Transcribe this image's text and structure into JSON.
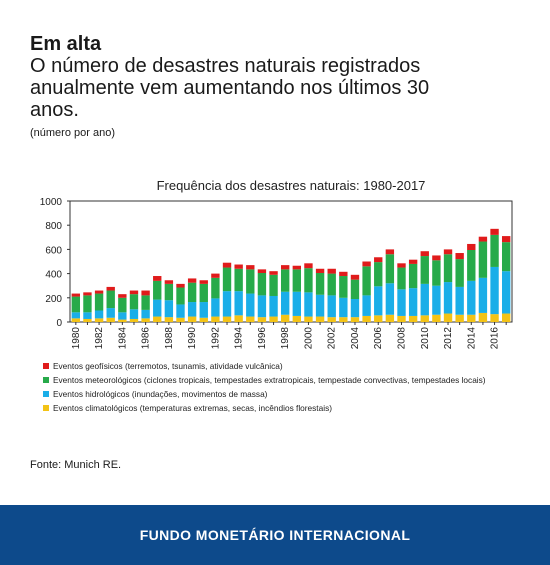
{
  "header": {
    "title": "Em alta",
    "subtitle": "O número de desastres naturais registrados anualmente vem aumentando nos últimos 30 anos.",
    "unit": "(número por ano)"
  },
  "source": "Fonte: Munich RE.",
  "footer": {
    "org": "FUNDO MONETÁRIO INTERNACIONAL"
  },
  "chart_data": {
    "type": "bar",
    "stacked": true,
    "title": "Frequência dos desastres naturais: 1980-2017",
    "xlabel": "",
    "ylabel": "",
    "ylim": [
      0,
      1000
    ],
    "yticks": [
      0,
      200,
      400,
      600,
      800,
      1000
    ],
    "grid": false,
    "legend_position": "bottom",
    "categories": [
      "1980",
      "1981",
      "1982",
      "1983",
      "1984",
      "1985",
      "1986",
      "1987",
      "1988",
      "1989",
      "1990",
      "1991",
      "1992",
      "1993",
      "1994",
      "1995",
      "1996",
      "1997",
      "1998",
      "1999",
      "2000",
      "2001",
      "2002",
      "2003",
      "2004",
      "2005",
      "2006",
      "2007",
      "2008",
      "2009",
      "2010",
      "2011",
      "2012",
      "2013",
      "2014",
      "2015",
      "2016",
      "2017"
    ],
    "xtick_labels": [
      "1980",
      "1982",
      "1984",
      "1986",
      "1988",
      "1990",
      "1992",
      "1994",
      "1996",
      "1998",
      "2000",
      "2002",
      "2004",
      "2006",
      "2008",
      "2010",
      "2012",
      "2014",
      "2016"
    ],
    "series": [
      {
        "name": "Eventos climatológicos (temperaturas extremas, secas, incêndios florestais)",
        "color": "#f3c316",
        "values": [
          30,
          25,
          30,
          35,
          20,
          25,
          30,
          45,
          40,
          35,
          45,
          35,
          45,
          45,
          55,
          45,
          40,
          45,
          60,
          50,
          45,
          45,
          40,
          40,
          40,
          50,
          55,
          60,
          50,
          50,
          55,
          60,
          70,
          60,
          60,
          75,
          65,
          70
        ]
      },
      {
        "name": "Eventos hidrológicos (inundações, movimentos de massa)",
        "color": "#1aaee8",
        "values": [
          50,
          55,
          65,
          80,
          60,
          80,
          70,
          140,
          140,
          110,
          120,
          130,
          150,
          210,
          200,
          190,
          180,
          170,
          190,
          200,
          200,
          180,
          180,
          160,
          150,
          170,
          240,
          260,
          220,
          230,
          260,
          240,
          260,
          230,
          280,
          290,
          390,
          350
        ]
      },
      {
        "name": "Eventos meteorológicos (ciclones tropicais, tempestades extratropicais, tempestade convectivas, tempestades locais)",
        "color": "#27aa4a",
        "values": [
          130,
          140,
          140,
          145,
          120,
          125,
          120,
          155,
          135,
          140,
          160,
          150,
          170,
          195,
          185,
          200,
          185,
          175,
          185,
          185,
          200,
          180,
          180,
          180,
          160,
          240,
          200,
          240,
          180,
          200,
          230,
          210,
          230,
          230,
          255,
          300,
          265,
          240
        ]
      },
      {
        "name": "Eventos geofísicos (terremotos, tsunamis, atividade vulcânica)",
        "color": "#e01b1b",
        "values": [
          25,
          25,
          25,
          30,
          30,
          30,
          40,
          40,
          30,
          30,
          35,
          30,
          35,
          40,
          35,
          35,
          30,
          30,
          35,
          30,
          40,
          35,
          40,
          35,
          40,
          40,
          40,
          40,
          35,
          35,
          40,
          40,
          40,
          50,
          50,
          40,
          50,
          50
        ]
      }
    ]
  }
}
